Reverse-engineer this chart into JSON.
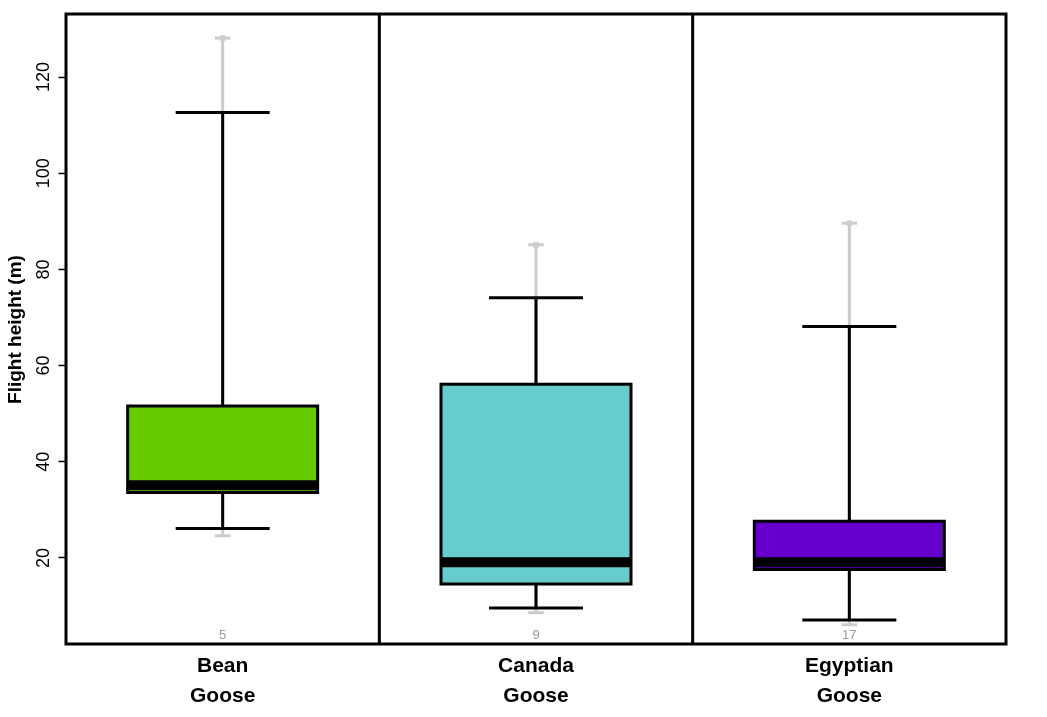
{
  "chart_data": {
    "type": "box",
    "ylabel": "Flight height (m)",
    "categories": [
      "Bean Goose",
      "Canada Goose",
      "Egyptian Goose"
    ],
    "ylim": [
      2,
      133
    ],
    "yticks": [
      20,
      40,
      60,
      80,
      100,
      120
    ],
    "series": [
      {
        "type": "scatter",
        "marker": "square",
        "color": "#cccccc",
        "values": [
          128,
          85,
          89.5
        ],
        "errors": [
          [
            24.5,
            128
          ],
          [
            8.5,
            85
          ],
          [
            6,
            89.5
          ]
        ]
      },
      {
        "colors": [
          "#66cc00",
          "#66cccc",
          "#6600cc"
        ],
        "boxes": [
          {
            "low": 26,
            "q1": 33.5,
            "median": 35,
            "q3": 51.5,
            "high": 112.5
          },
          {
            "low": 9.5,
            "q1": 14.5,
            "median": 19,
            "q3": 56,
            "high": 74
          },
          {
            "low": 7,
            "q1": 17.5,
            "median": 19,
            "q3": 27.5,
            "high": 68
          }
        ]
      }
    ],
    "annotations": [
      "5",
      "9",
      "17"
    ]
  }
}
